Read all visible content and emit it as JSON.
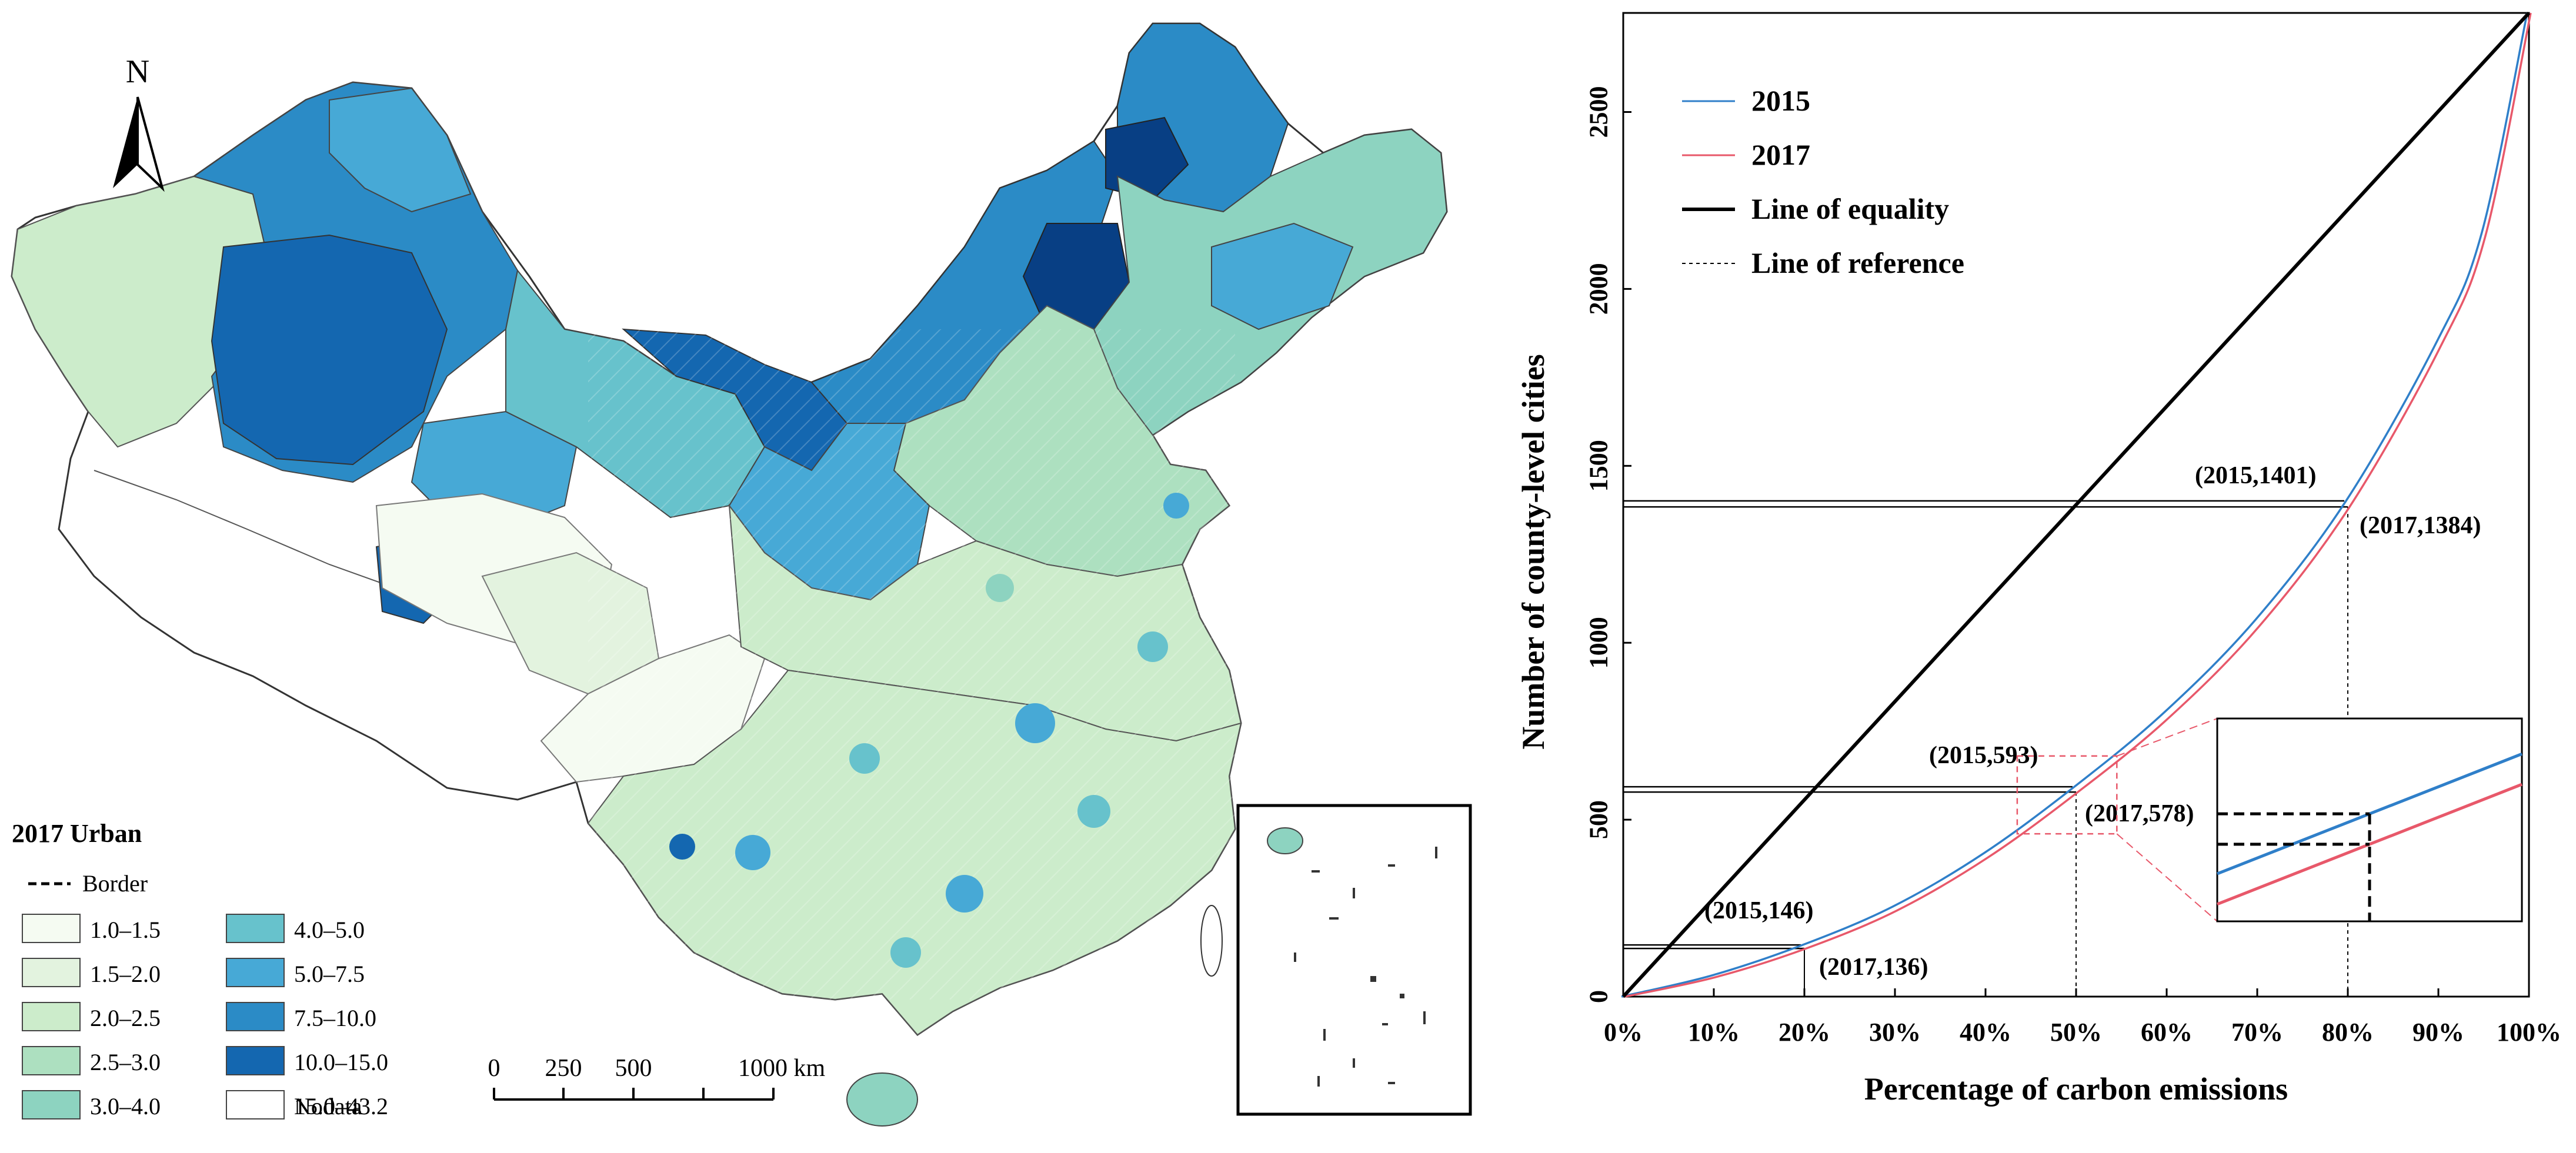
{
  "map": {
    "north_label": "N",
    "legend": {
      "title": "2017 Urban",
      "border_label": "Border",
      "no_data_label": "Nodata",
      "classes": [
        {
          "label": "1.0–1.5",
          "color": "#f5fbf2"
        },
        {
          "label": "1.5–2.0",
          "color": "#e3f3df"
        },
        {
          "label": "2.0–2.5",
          "color": "#cceccb"
        },
        {
          "label": "2.5–3.0",
          "color": "#ade0c0"
        },
        {
          "label": "3.0–4.0",
          "color": "#8dd3c0"
        },
        {
          "label": "4.0–5.0",
          "color": "#67c2cc"
        },
        {
          "label": "5.0–7.5",
          "color": "#47a9d6"
        },
        {
          "label": "7.5–10.0",
          "color": "#2b8bc6"
        },
        {
          "label": "10.0–15.0",
          "color": "#1467b0"
        },
        {
          "label": "15.0–43.2",
          "color": "#083f84"
        }
      ],
      "no_data_color": "#ffffff"
    },
    "scale_bar": {
      "ticks": [
        "0",
        "250",
        "500",
        "1000 km"
      ]
    }
  },
  "chart_data": {
    "type": "line",
    "xlabel": "Percentage of carbon emissions",
    "ylabel": "Number of county-level cities",
    "x_ticks": [
      "0%",
      "10%",
      "20%",
      "30%",
      "40%",
      "50%",
      "60%",
      "70%",
      "80%",
      "90%",
      "100%"
    ],
    "y_ticks": [
      "0",
      "500",
      "1000",
      "1500",
      "2000",
      "2500"
    ],
    "xlim": [
      0,
      100
    ],
    "ylim": [
      0,
      2780
    ],
    "legend_position": "top-left",
    "series": [
      {
        "name": "2015",
        "color": "#2f7fc9",
        "x": [
          0,
          10,
          20,
          30,
          40,
          50,
          60,
          70,
          80,
          90,
          95,
          100
        ],
        "y": [
          0,
          60,
          146,
          255,
          405,
          593,
          805,
          1065,
          1401,
          1850,
          2160,
          2780
        ]
      },
      {
        "name": "2017",
        "color": "#e8586a",
        "x": [
          0,
          10,
          20,
          30,
          40,
          50,
          60,
          70,
          80,
          90,
          95,
          100
        ],
        "y": [
          0,
          55,
          136,
          243,
          392,
          578,
          787,
          1046,
          1384,
          1835,
          2150,
          2780
        ]
      },
      {
        "name": "Line of equality",
        "color": "#000000",
        "x": [
          0,
          100
        ],
        "y": [
          0,
          2780
        ]
      }
    ],
    "reference_label": "Line of reference",
    "annotations": [
      {
        "label": "(2015,1401)",
        "x": 80,
        "y": 1401
      },
      {
        "label": "(2017,1384)",
        "x": 80,
        "y": 1384
      },
      {
        "label": "(2015,593)",
        "x": 50,
        "y": 593
      },
      {
        "label": "(2017,578)",
        "x": 50,
        "y": 578
      },
      {
        "label": "(2015,146)",
        "x": 20,
        "y": 146
      },
      {
        "label": "(2017,136)",
        "x": 20,
        "y": 136
      }
    ]
  }
}
